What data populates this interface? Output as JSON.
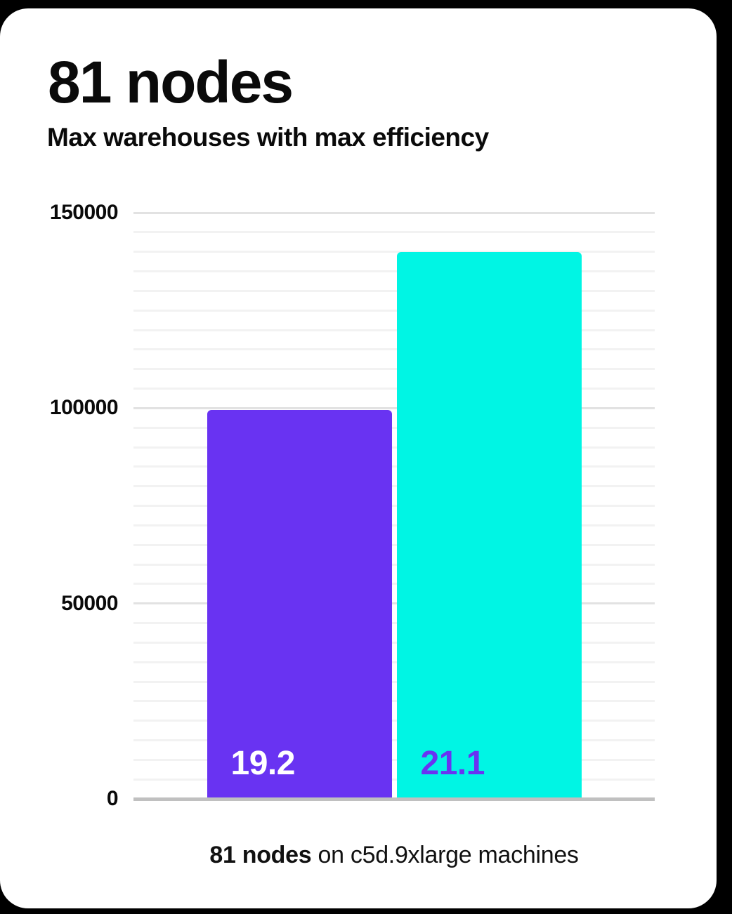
{
  "card": {
    "title": "81 nodes",
    "subtitle": "Max warehouses with max efficiency"
  },
  "chart_data": {
    "type": "bar",
    "title": "81 nodes",
    "subtitle": "Max warehouses with max efficiency",
    "categories": [
      "19.2",
      "21.1"
    ],
    "values": [
      99500,
      140000
    ],
    "bar_labels": [
      "19.2",
      "21.1"
    ],
    "bar_colors": [
      "#6933f2",
      "#00f5e4"
    ],
    "bar_label_colors": [
      "#ffffff",
      "#6933f2"
    ],
    "xlabel": "",
    "ylabel": "",
    "ylim": [
      0,
      150000
    ],
    "yticks": [
      0,
      50000,
      100000,
      150000
    ],
    "ytick_labels": [
      "0",
      "50000",
      "100000",
      "150000"
    ],
    "minor_grid_step": 5000,
    "grid": "horizontal",
    "legend": "none",
    "bar_label_position": "inside-bottom-left",
    "caption": {
      "bold": "81 nodes",
      "rest": " on c5d.9xlarge machines"
    },
    "colors": {
      "grid_minor": "#f2f2f2",
      "grid_major": "#e2e2e2",
      "axis_line": "#c0c0c0",
      "text": "#0a0a0a",
      "card_background": "#ffffff"
    }
  }
}
